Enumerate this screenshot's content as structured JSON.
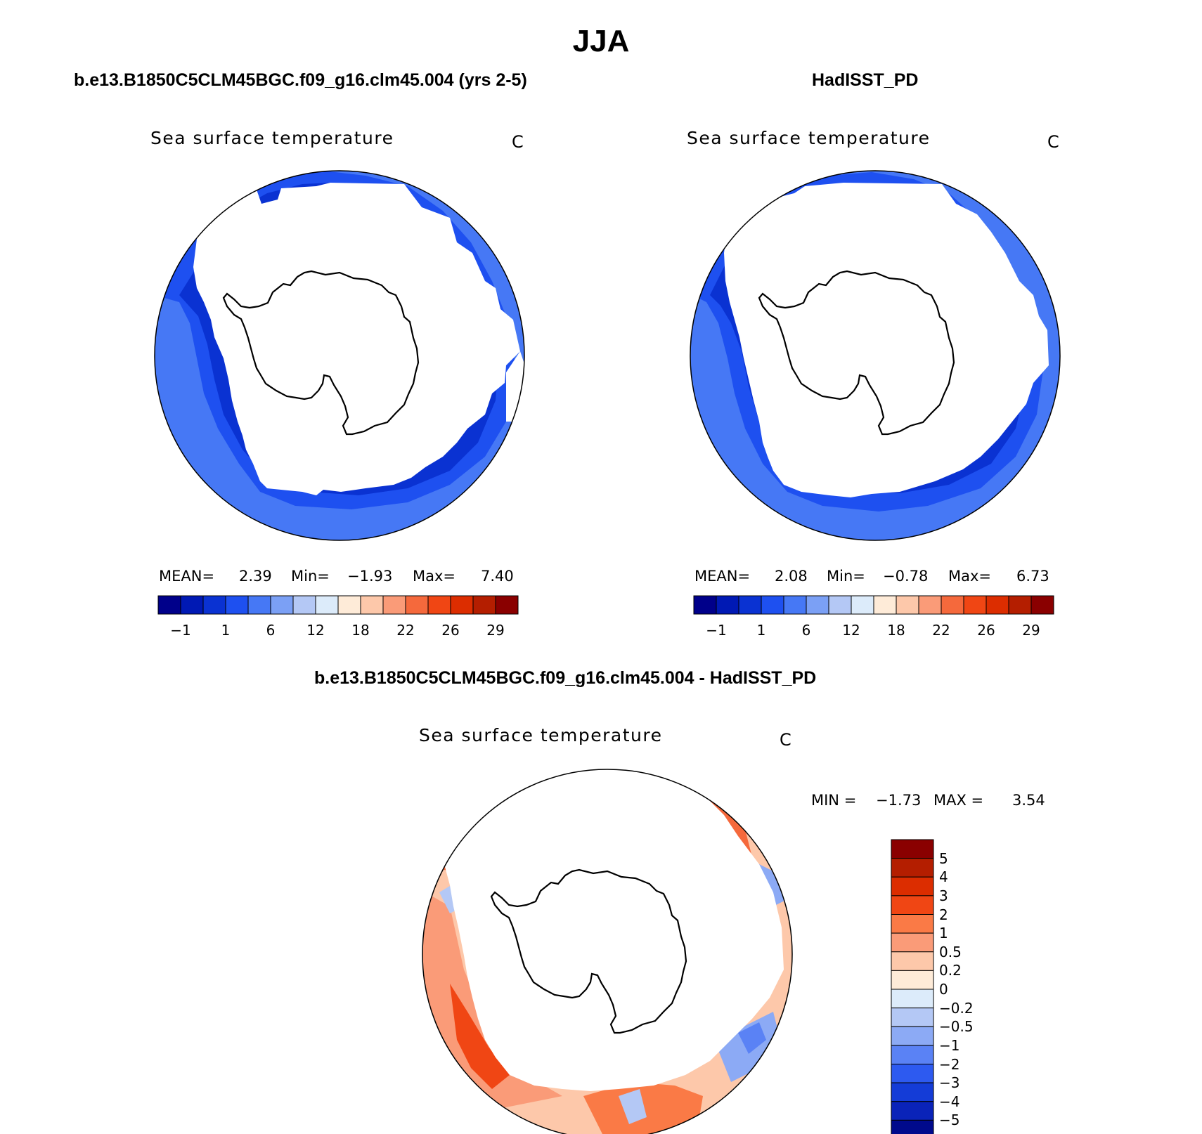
{
  "title": "JJA",
  "panels": [
    {
      "title": "b.e13.B1850C5CLM45BGC.f09_g16.clm45.004 (yrs 2-5)",
      "variable": "Sea surface temperature",
      "units": "C",
      "mean_label": "MEAN=",
      "mean": "2.39",
      "min_label": "Min=",
      "min": "−1.93",
      "max_label": "Max=",
      "max": "7.40"
    },
    {
      "title": "HadISST_PD",
      "variable": "Sea surface temperature",
      "units": "C",
      "mean_label": "MEAN=",
      "mean": "2.08",
      "min_label": "Min=",
      "min": "−0.78",
      "max_label": "Max=",
      "max": "6.73"
    },
    {
      "title": "b.e13.B1850C5CLM45BGC.f09_g16.clm45.004 - HadISST_PD",
      "variable": "Sea surface temperature",
      "units": "C",
      "min_label": "MIN =",
      "min": "−1.73",
      "max_label": "MAX =",
      "max": "3.54"
    }
  ],
  "chart_data": [
    {
      "type": "heatmap",
      "projection": "south-polar-stereographic",
      "title": "b.e13.B1850C5CLM45BGC.f09_g16.clm45.004 (yrs 2-5)",
      "variable": "Sea surface temperature",
      "units": "C",
      "stats": {
        "mean": 2.39,
        "min": -1.93,
        "max": 7.4
      },
      "colorbar": {
        "orientation": "horizontal",
        "colors": [
          "#00008a",
          "#0019b4",
          "#0a32d2",
          "#1e50f0",
          "#4678f5",
          "#7ba0f5",
          "#b4c8f5",
          "#dcebfa",
          "#feebd8",
          "#fdc8aa",
          "#fa9b78",
          "#f5693c",
          "#f04614",
          "#dc2d00",
          "#b41e00",
          "#8a0000"
        ],
        "tick_labels": [
          "−1",
          "1",
          "6",
          "12",
          "18",
          "22",
          "26",
          "29"
        ]
      }
    },
    {
      "type": "heatmap",
      "projection": "south-polar-stereographic",
      "title": "HadISST_PD",
      "variable": "Sea surface temperature",
      "units": "C",
      "stats": {
        "mean": 2.08,
        "min": -0.78,
        "max": 6.73
      },
      "colorbar": {
        "orientation": "horizontal",
        "colors": [
          "#00008a",
          "#0019b4",
          "#0a32d2",
          "#1e50f0",
          "#4678f5",
          "#7ba0f5",
          "#b4c8f5",
          "#dcebfa",
          "#feebd8",
          "#fdc8aa",
          "#fa9b78",
          "#f5693c",
          "#f04614",
          "#dc2d00",
          "#b41e00",
          "#8a0000"
        ],
        "tick_labels": [
          "−1",
          "1",
          "6",
          "12",
          "18",
          "22",
          "26",
          "29"
        ]
      }
    },
    {
      "type": "heatmap",
      "projection": "south-polar-stereographic",
      "title": "b.e13.B1850C5CLM45BGC.f09_g16.clm45.004 - HadISST_PD",
      "variable": "Sea surface temperature",
      "units": "C",
      "stats": {
        "min": -1.73,
        "max": 3.54
      },
      "colorbar": {
        "orientation": "vertical",
        "colors_top_to_bottom": [
          "#8a0000",
          "#b41e00",
          "#dc2d00",
          "#f04614",
          "#fa7a46",
          "#fa9b78",
          "#fdc8aa",
          "#feebd8",
          "#dcebfa",
          "#b4c8f5",
          "#8caaf5",
          "#5a82f5",
          "#2d5af0",
          "#143cd7",
          "#0a23b9",
          "#000a8c"
        ],
        "tick_labels": [
          "5",
          "4",
          "3",
          "2",
          "1",
          "0.5",
          "0.2",
          "0",
          "−0.2",
          "−0.5",
          "−1",
          "−2",
          "−3",
          "−4",
          "−5"
        ]
      }
    }
  ]
}
